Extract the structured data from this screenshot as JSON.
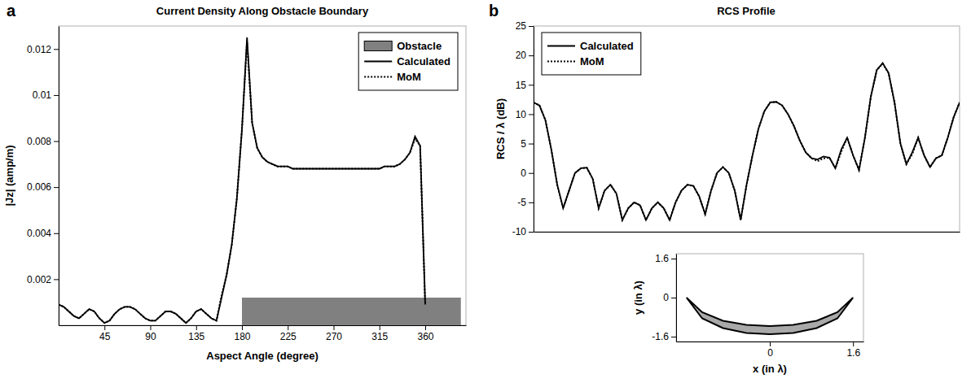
{
  "chart_data": [
    {
      "type": "line",
      "panel_label": "a",
      "title": "Current Density Along Obstacle Boundary",
      "x_label": "Aspect Angle (degree)",
      "y_label": "|Jz| (amp/m)",
      "x": [
        0,
        5,
        10,
        15,
        20,
        25,
        30,
        35,
        40,
        45,
        50,
        55,
        60,
        65,
        70,
        75,
        80,
        85,
        90,
        95,
        100,
        105,
        110,
        115,
        120,
        125,
        130,
        135,
        140,
        145,
        150,
        155,
        160,
        165,
        170,
        175,
        180,
        185,
        190,
        195,
        200,
        205,
        210,
        215,
        220,
        225,
        230,
        235,
        240,
        245,
        250,
        255,
        260,
        265,
        270,
        275,
        280,
        285,
        290,
        295,
        300,
        305,
        310,
        315,
        320,
        325,
        330,
        335,
        340,
        345,
        350,
        355,
        360
      ],
      "xlim": [
        0,
        400
      ],
      "xticks": [
        45,
        90,
        135,
        180,
        225,
        270,
        315,
        360
      ],
      "ylim": [
        0,
        0.013
      ],
      "yticks": [
        0.002,
        0.004,
        0.006,
        0.008,
        0.01,
        0.012
      ],
      "legend": "upper right",
      "series": [
        {
          "name": "Obstacle",
          "type": "area",
          "color": "#808080",
          "x": [
            180,
            395
          ],
          "values": [
            0.0012,
            0.0012
          ]
        },
        {
          "name": "Calculated",
          "color": "#000000",
          "line_style": "solid",
          "values": [
            0.0009,
            0.0008,
            0.0006,
            0.0004,
            0.0003,
            0.0005,
            0.0007,
            0.0006,
            0.0003,
            0.0001,
            0.0002,
            0.0005,
            0.0007,
            0.0008,
            0.0008,
            0.0007,
            0.0005,
            0.0003,
            0.0002,
            0.0002,
            0.0004,
            0.0006,
            0.0006,
            0.0005,
            0.0003,
            0.0001,
            0.0003,
            0.0006,
            0.0007,
            0.0005,
            0.0003,
            0.0002,
            0.0012,
            0.0022,
            0.0035,
            0.0055,
            0.0085,
            0.0125,
            0.0088,
            0.0077,
            0.0073,
            0.0071,
            0.007,
            0.0069,
            0.0069,
            0.0069,
            0.0068,
            0.0068,
            0.0068,
            0.0068,
            0.0068,
            0.0068,
            0.0068,
            0.0068,
            0.0068,
            0.0068,
            0.0068,
            0.0068,
            0.0068,
            0.0068,
            0.0068,
            0.0068,
            0.0068,
            0.0068,
            0.0069,
            0.0069,
            0.0069,
            0.007,
            0.0072,
            0.0075,
            0.0082,
            0.0078,
            0.0009
          ]
        },
        {
          "name": "MoM",
          "color": "#000000",
          "line_style": "dotted",
          "values": [
            0.0009,
            0.0008,
            0.0006,
            0.0004,
            0.0003,
            0.0005,
            0.0007,
            0.0006,
            0.0003,
            0.0001,
            0.0002,
            0.0005,
            0.0007,
            0.0008,
            0.0008,
            0.0007,
            0.0005,
            0.0003,
            0.0002,
            0.0002,
            0.0004,
            0.0006,
            0.0006,
            0.0005,
            0.0003,
            0.0001,
            0.0003,
            0.0006,
            0.0007,
            0.0005,
            0.0003,
            0.0002,
            0.0013,
            0.0022,
            0.0035,
            0.0055,
            0.0085,
            0.0123,
            0.0088,
            0.0077,
            0.0073,
            0.0071,
            0.007,
            0.0069,
            0.0069,
            0.0069,
            0.0068,
            0.0068,
            0.0068,
            0.0068,
            0.0068,
            0.0068,
            0.0068,
            0.0068,
            0.0068,
            0.0068,
            0.0068,
            0.0068,
            0.0068,
            0.0068,
            0.0068,
            0.0068,
            0.0068,
            0.0068,
            0.0069,
            0.0069,
            0.0069,
            0.007,
            0.0072,
            0.0075,
            0.0081,
            0.0078,
            0.0009
          ]
        }
      ]
    },
    {
      "type": "line",
      "panel_label": "b",
      "title": "RCS Profile",
      "y_label": "RCS / λ (dB)",
      "x": [
        0,
        5,
        10,
        15,
        20,
        25,
        30,
        35,
        40,
        45,
        50,
        55,
        60,
        65,
        70,
        75,
        80,
        85,
        90,
        95,
        100,
        105,
        110,
        115,
        120,
        125,
        130,
        135,
        140,
        145,
        150,
        155,
        160,
        165,
        170,
        175,
        180,
        185,
        190,
        195,
        200,
        205,
        210,
        215,
        220,
        225,
        230,
        235,
        240,
        245,
        250,
        255,
        260,
        265,
        270,
        275,
        280,
        285,
        290,
        295,
        300,
        305,
        310,
        315,
        320,
        325,
        330,
        335,
        340,
        345,
        350,
        355,
        360
      ],
      "xlim": [
        0,
        360
      ],
      "ylim": [
        -10,
        25
      ],
      "yticks": [
        -10,
        -5,
        0,
        5,
        10,
        15,
        20,
        25
      ],
      "tick_labels": "y",
      "legend": "upper left",
      "series": [
        {
          "name": "Calculated",
          "color": "#000000",
          "line_style": "solid",
          "values": [
            12,
            11.5,
            9,
            4,
            -2,
            -6,
            -3,
            0,
            0.8,
            0.9,
            -1,
            -6,
            -3,
            -2,
            -3.5,
            -8,
            -6,
            -5,
            -5.5,
            -8,
            -6,
            -5,
            -6,
            -8,
            -5,
            -3,
            -2,
            -2.2,
            -4,
            -7,
            -3,
            0,
            1,
            0,
            -3,
            -8,
            -2,
            3,
            7.5,
            10.5,
            12,
            12.1,
            11.5,
            10,
            8,
            5.5,
            3.5,
            2.5,
            2.3,
            2.8,
            2.6,
            0.8,
            4,
            6,
            3,
            0.5,
            6,
            13,
            17.5,
            18.7,
            17,
            12,
            5,
            1.5,
            3.5,
            6,
            3,
            1,
            2.5,
            3,
            6,
            9.5,
            12
          ]
        },
        {
          "name": "MoM",
          "color": "#000000",
          "line_style": "dotted",
          "values": [
            12,
            11.5,
            9,
            4,
            -2,
            -6,
            -3,
            0,
            0.8,
            0.9,
            -1,
            -6,
            -3,
            -2,
            -3.5,
            -8,
            -6,
            -5,
            -5.5,
            -8,
            -6,
            -5,
            -6,
            -8,
            -5,
            -3,
            -2,
            -2.2,
            -4,
            -7,
            -3,
            0,
            1,
            0,
            -3,
            -8,
            -2,
            3,
            7.5,
            10.5,
            12,
            12.1,
            11.5,
            10,
            8,
            5.5,
            3.5,
            2.5,
            2,
            2.5,
            2.6,
            0.8,
            3.6,
            6,
            3,
            0.5,
            6,
            13,
            17.5,
            18.6,
            17,
            12,
            5,
            1.5,
            3.2,
            6,
            3,
            1,
            2.5,
            3,
            6,
            9.5,
            12
          ]
        }
      ]
    },
    {
      "type": "polygon",
      "x_label": "x (in λ)",
      "y_label": "y (in λ)",
      "xlim": [
        -1.8,
        1.8
      ],
      "xticks": [
        0,
        1.6
      ],
      "ylim": [
        -1.8,
        1.8
      ],
      "yticks": [
        -1.6,
        0,
        1.6
      ],
      "series": [
        {
          "color": "#9a9a9a",
          "x": [
            -1.6,
            -1.3,
            -0.9,
            -0.45,
            0,
            0.45,
            0.9,
            1.3,
            1.6,
            1.3,
            0.9,
            0.45,
            0,
            -0.45,
            -0.9,
            -1.3,
            -1.6
          ],
          "values": [
            0,
            -0.85,
            -1.25,
            -1.45,
            -1.5,
            -1.45,
            -1.25,
            -0.85,
            0,
            -0.6,
            -0.95,
            -1.12,
            -1.17,
            -1.12,
            -0.95,
            -0.6,
            0
          ]
        }
      ]
    }
  ]
}
